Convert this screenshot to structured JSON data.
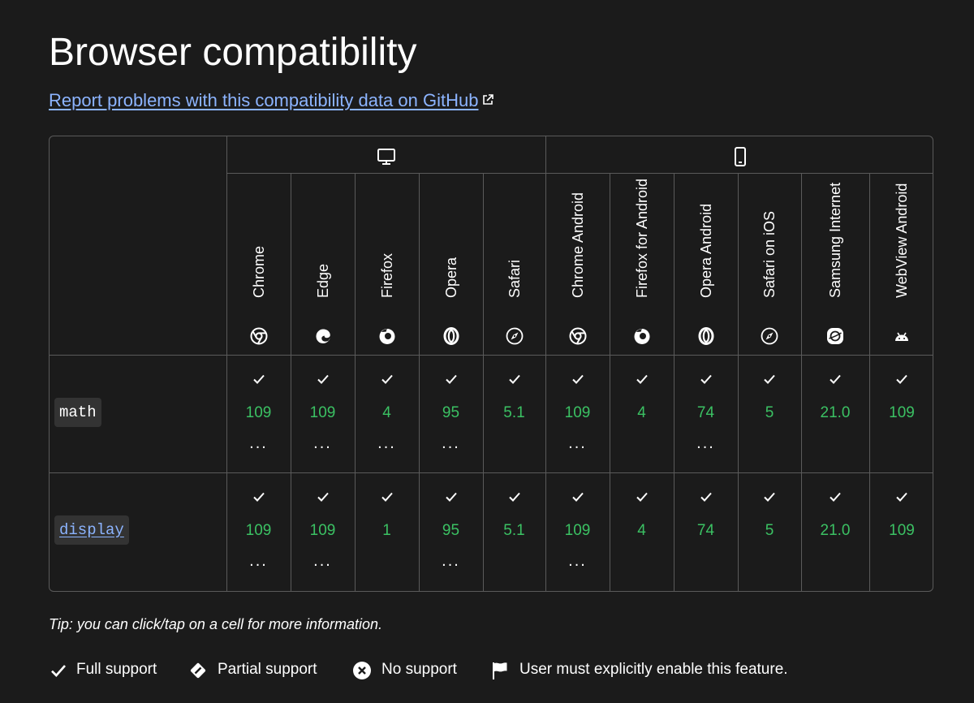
{
  "page": {
    "title": "Browser compatibility",
    "report_link": "Report problems with this compatibility data on GitHub"
  },
  "platforms": [
    {
      "name": "desktop",
      "icon": "desktop-icon"
    },
    {
      "name": "mobile",
      "icon": "mobile-icon"
    }
  ],
  "browsers": [
    {
      "name": "Chrome",
      "icon": "chrome-icon"
    },
    {
      "name": "Edge",
      "icon": "edge-icon"
    },
    {
      "name": "Firefox",
      "icon": "firefox-icon"
    },
    {
      "name": "Opera",
      "icon": "opera-icon"
    },
    {
      "name": "Safari",
      "icon": "safari-icon"
    },
    {
      "name": "Chrome Android",
      "icon": "chrome-icon"
    },
    {
      "name": "Firefox for Android",
      "icon": "firefox-icon"
    },
    {
      "name": "Opera Android",
      "icon": "opera-icon"
    },
    {
      "name": "Safari on iOS",
      "icon": "safari-icon"
    },
    {
      "name": "Samsung Internet",
      "icon": "samsung-internet-icon"
    },
    {
      "name": "WebView Android",
      "icon": "android-icon"
    }
  ],
  "features": [
    {
      "name": "math",
      "is_link": false,
      "support": [
        {
          "version": "109",
          "more": "..."
        },
        {
          "version": "109",
          "more": "..."
        },
        {
          "version": "4",
          "more": "..."
        },
        {
          "version": "95",
          "more": "..."
        },
        {
          "version": "5.1",
          "more": ""
        },
        {
          "version": "109",
          "more": "..."
        },
        {
          "version": "4",
          "more": ""
        },
        {
          "version": "74",
          "more": "..."
        },
        {
          "version": "5",
          "more": ""
        },
        {
          "version": "21.0",
          "more": ""
        },
        {
          "version": "109",
          "more": ""
        }
      ]
    },
    {
      "name": "display",
      "is_link": true,
      "support": [
        {
          "version": "109",
          "more": "..."
        },
        {
          "version": "109",
          "more": "..."
        },
        {
          "version": "1",
          "more": ""
        },
        {
          "version": "95",
          "more": "..."
        },
        {
          "version": "5.1",
          "more": ""
        },
        {
          "version": "109",
          "more": "..."
        },
        {
          "version": "4",
          "more": ""
        },
        {
          "version": "74",
          "more": ""
        },
        {
          "version": "5",
          "more": ""
        },
        {
          "version": "21.0",
          "more": ""
        },
        {
          "version": "109",
          "more": ""
        }
      ]
    }
  ],
  "tip": "Tip: you can click/tap on a cell for more information.",
  "legend": [
    {
      "icon": "check-icon",
      "label": "Full support"
    },
    {
      "icon": "partial-support-icon",
      "label": "Partial support"
    },
    {
      "icon": "no-support-icon",
      "label": "No support"
    },
    {
      "icon": "flag-icon",
      "label": "User must explicitly enable this feature."
    }
  ],
  "colors": {
    "background": "#1b1b1b",
    "link": "#8cb4ff",
    "supported_version": "#3bc163",
    "border": "#5a5a5a"
  }
}
